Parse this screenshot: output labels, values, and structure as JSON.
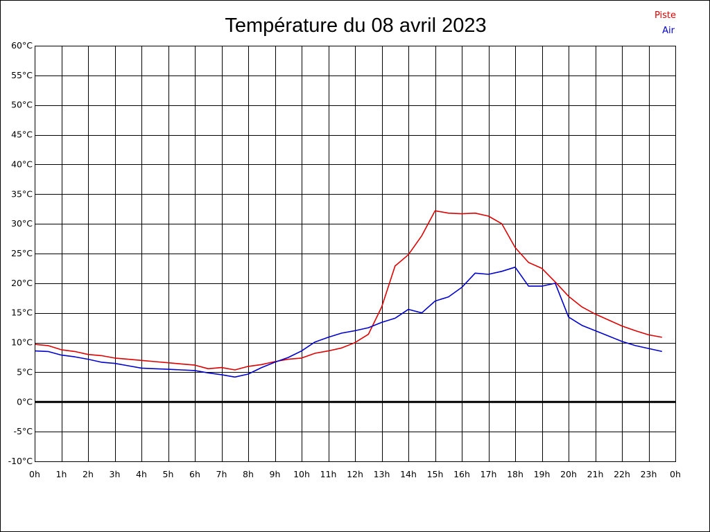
{
  "chart_data": {
    "type": "line",
    "title": "Température du 08 avril 2023",
    "xlabel": "",
    "ylabel": "",
    "grid": true,
    "legend_placement": "top-right",
    "xlim": [
      0,
      24
    ],
    "ylim": [
      -10,
      60
    ],
    "x_tick_labels": [
      "0h",
      "1h",
      "2h",
      "3h",
      "4h",
      "5h",
      "6h",
      "7h",
      "8h",
      "9h",
      "10h",
      "11h",
      "12h",
      "13h",
      "14h",
      "15h",
      "16h",
      "17h",
      "18h",
      "19h",
      "20h",
      "21h",
      "22h",
      "23h",
      "0h"
    ],
    "y_ticks": [
      -10,
      -5,
      0,
      5,
      10,
      15,
      20,
      25,
      30,
      35,
      40,
      45,
      50,
      55,
      60
    ],
    "y_tick_labels": [
      "-10°C",
      "-5°C",
      "0°C",
      "5°C",
      "10°C",
      "15°C",
      "20°C",
      "25°C",
      "30°C",
      "35°C",
      "40°C",
      "45°C",
      "50°C",
      "55°C",
      "60°C"
    ],
    "zero_line": 0,
    "x": [
      0,
      0.5,
      1,
      1.5,
      2,
      2.5,
      3,
      3.5,
      4,
      4.5,
      5,
      5.5,
      6,
      6.5,
      7,
      7.5,
      8,
      8.5,
      9,
      9.5,
      10,
      10.5,
      11,
      11.5,
      12,
      12.5,
      13,
      13.5,
      14,
      14.5,
      15,
      15.5,
      16,
      16.5,
      17,
      17.5,
      18,
      18.5,
      19,
      19.5,
      20,
      20.5,
      21,
      21.5,
      22,
      22.5,
      23,
      23.5
    ],
    "series": [
      {
        "name": "Piste",
        "color": "#dd0000",
        "values": [
          9.7,
          9.5,
          8.8,
          8.5,
          8.0,
          7.8,
          7.4,
          7.2,
          7.0,
          6.8,
          6.6,
          6.4,
          6.2,
          5.6,
          5.8,
          5.4,
          6.0,
          6.3,
          6.8,
          7.2,
          7.4,
          8.2,
          8.6,
          9.1,
          10.0,
          11.4,
          16.0,
          22.9,
          24.8,
          28.0,
          32.2,
          31.8,
          31.7,
          31.8,
          31.3,
          30.0,
          26.0,
          23.5,
          22.5,
          20.2,
          17.8,
          16.0,
          14.8,
          13.8,
          12.8,
          12.0,
          11.3,
          10.9
        ]
      },
      {
        "name": "Air",
        "color": "#0000cc",
        "values": [
          8.6,
          8.5,
          7.9,
          7.6,
          7.2,
          6.7,
          6.5,
          6.1,
          5.7,
          5.6,
          5.5,
          5.4,
          5.3,
          4.9,
          4.6,
          4.2,
          4.7,
          5.8,
          6.7,
          7.5,
          8.6,
          10.1,
          10.9,
          11.6,
          12.0,
          12.5,
          13.4,
          14.1,
          15.6,
          15.0,
          17.0,
          17.7,
          19.3,
          21.7,
          21.5,
          22.0,
          22.7,
          19.5,
          19.5,
          20.0,
          14.3,
          12.9,
          12.0,
          11.1,
          10.2,
          9.5,
          9.0,
          8.5
        ]
      }
    ]
  }
}
